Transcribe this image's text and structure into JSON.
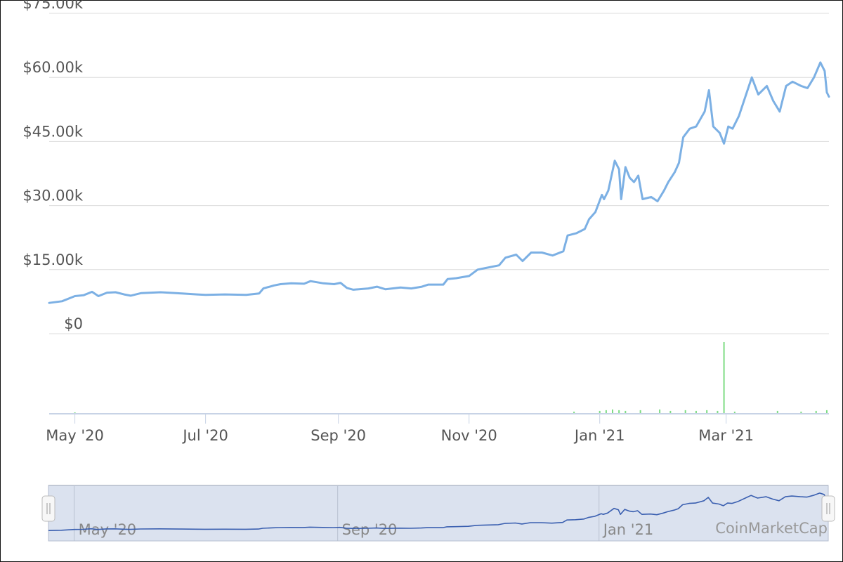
{
  "chart_data": {
    "type": "line",
    "credit": "CoinMarketCap",
    "y_ticks": [
      "$0",
      "$15.00k",
      "$30.00k",
      "$45.00k",
      "$60.00k",
      "$75.00k"
    ],
    "ylim": [
      0,
      75000
    ],
    "x_ticks": [
      {
        "label": "May '20",
        "date": "2020-05-01"
      },
      {
        "label": "Jul '20",
        "date": "2020-07-01"
      },
      {
        "label": "Sep '20",
        "date": "2020-09-01"
      },
      {
        "label": "Nov '20",
        "date": "2020-11-01"
      },
      {
        "label": "Jan '21",
        "date": "2021-01-01"
      },
      {
        "label": "Mar '21",
        "date": "2021-03-01"
      }
    ],
    "navigator_ticks": [
      {
        "label": "May '20",
        "date": "2020-05-01"
      },
      {
        "label": "Sep '20",
        "date": "2020-09-01"
      },
      {
        "label": "Jan '21",
        "date": "2021-01-01"
      }
    ],
    "xlim": [
      "2020-04-19",
      "2021-04-18"
    ],
    "grid": true,
    "series": [
      {
        "color": "#7cb0e4",
        "points": [
          [
            "2020-04-19",
            7200
          ],
          [
            "2020-04-25",
            7600
          ],
          [
            "2020-05-01",
            8800
          ],
          [
            "2020-05-05",
            9000
          ],
          [
            "2020-05-09",
            9800
          ],
          [
            "2020-05-12",
            8800
          ],
          [
            "2020-05-16",
            9600
          ],
          [
            "2020-05-20",
            9700
          ],
          [
            "2020-05-24",
            9200
          ],
          [
            "2020-05-27",
            8900
          ],
          [
            "2020-06-01",
            9500
          ],
          [
            "2020-06-10",
            9700
          ],
          [
            "2020-06-20",
            9400
          ],
          [
            "2020-06-27",
            9200
          ],
          [
            "2020-07-01",
            9100
          ],
          [
            "2020-07-10",
            9200
          ],
          [
            "2020-07-20",
            9100
          ],
          [
            "2020-07-26",
            9400
          ],
          [
            "2020-07-28",
            10600
          ],
          [
            "2020-08-02",
            11300
          ],
          [
            "2020-08-05",
            11600
          ],
          [
            "2020-08-10",
            11800
          ],
          [
            "2020-08-16",
            11700
          ],
          [
            "2020-08-19",
            12300
          ],
          [
            "2020-08-25",
            11800
          ],
          [
            "2020-08-30",
            11600
          ],
          [
            "2020-09-02",
            11900
          ],
          [
            "2020-09-05",
            10700
          ],
          [
            "2020-09-08",
            10300
          ],
          [
            "2020-09-15",
            10600
          ],
          [
            "2020-09-19",
            11000
          ],
          [
            "2020-09-23",
            10400
          ],
          [
            "2020-09-30",
            10800
          ],
          [
            "2020-10-05",
            10600
          ],
          [
            "2020-10-10",
            11000
          ],
          [
            "2020-10-13",
            11500
          ],
          [
            "2020-10-20",
            11500
          ],
          [
            "2020-10-22",
            12800
          ],
          [
            "2020-10-26",
            13000
          ],
          [
            "2020-11-01",
            13500
          ],
          [
            "2020-11-05",
            15000
          ],
          [
            "2020-11-09",
            15400
          ],
          [
            "2020-11-15",
            16000
          ],
          [
            "2020-11-18",
            17800
          ],
          [
            "2020-11-23",
            18500
          ],
          [
            "2020-11-26",
            17000
          ],
          [
            "2020-11-30",
            19000
          ],
          [
            "2020-12-05",
            19000
          ],
          [
            "2020-12-10",
            18300
          ],
          [
            "2020-12-15",
            19300
          ],
          [
            "2020-12-17",
            23000
          ],
          [
            "2020-12-21",
            23500
          ],
          [
            "2020-12-25",
            24500
          ],
          [
            "2020-12-27",
            26800
          ],
          [
            "2020-12-30",
            28500
          ],
          [
            "2021-01-02",
            32500
          ],
          [
            "2021-01-03",
            31500
          ],
          [
            "2021-01-05",
            33500
          ],
          [
            "2021-01-08",
            40500
          ],
          [
            "2021-01-10",
            38500
          ],
          [
            "2021-01-11",
            31500
          ],
          [
            "2021-01-13",
            39000
          ],
          [
            "2021-01-15",
            36500
          ],
          [
            "2021-01-17",
            35500
          ],
          [
            "2021-01-19",
            37000
          ],
          [
            "2021-01-21",
            31500
          ],
          [
            "2021-01-25",
            32000
          ],
          [
            "2021-01-28",
            31000
          ],
          [
            "2021-01-31",
            33500
          ],
          [
            "2021-02-02",
            35500
          ],
          [
            "2021-02-05",
            37800
          ],
          [
            "2021-02-07",
            40000
          ],
          [
            "2021-02-09",
            46000
          ],
          [
            "2021-02-12",
            48000
          ],
          [
            "2021-02-15",
            48500
          ],
          [
            "2021-02-19",
            52000
          ],
          [
            "2021-02-21",
            57000
          ],
          [
            "2021-02-23",
            48500
          ],
          [
            "2021-02-26",
            47000
          ],
          [
            "2021-02-28",
            44500
          ],
          [
            "2021-03-02",
            48500
          ],
          [
            "2021-03-04",
            48000
          ],
          [
            "2021-03-07",
            51000
          ],
          [
            "2021-03-11",
            57000
          ],
          [
            "2021-03-13",
            60000
          ],
          [
            "2021-03-16",
            56000
          ],
          [
            "2021-03-20",
            58000
          ],
          [
            "2021-03-23",
            54500
          ],
          [
            "2021-03-26",
            52000
          ],
          [
            "2021-03-29",
            58000
          ],
          [
            "2021-04-01",
            59000
          ],
          [
            "2021-04-05",
            58000
          ],
          [
            "2021-04-08",
            57500
          ],
          [
            "2021-04-11",
            60000
          ],
          [
            "2021-04-14",
            63500
          ],
          [
            "2021-04-16",
            61500
          ],
          [
            "2021-04-17",
            56500
          ],
          [
            "2021-04-18",
            55500
          ]
        ]
      }
    ],
    "volume_series": {
      "color": "#7ddc84",
      "points": [
        [
          "2020-05-01",
          0.02
        ],
        [
          "2020-12-20",
          0.03
        ],
        [
          "2021-01-01",
          0.04
        ],
        [
          "2021-01-04",
          0.05
        ],
        [
          "2021-01-07",
          0.06
        ],
        [
          "2021-01-10",
          0.05
        ],
        [
          "2021-01-13",
          0.04
        ],
        [
          "2021-01-20",
          0.05
        ],
        [
          "2021-01-29",
          0.06
        ],
        [
          "2021-02-03",
          0.04
        ],
        [
          "2021-02-10",
          0.05
        ],
        [
          "2021-02-15",
          0.04
        ],
        [
          "2021-02-20",
          0.05
        ],
        [
          "2021-02-25",
          0.04
        ],
        [
          "2021-02-28",
          1.0
        ],
        [
          "2021-03-05",
          0.03
        ],
        [
          "2021-03-25",
          0.04
        ],
        [
          "2021-04-05",
          0.03
        ],
        [
          "2021-04-12",
          0.04
        ],
        [
          "2021-04-17",
          0.05
        ]
      ]
    }
  }
}
